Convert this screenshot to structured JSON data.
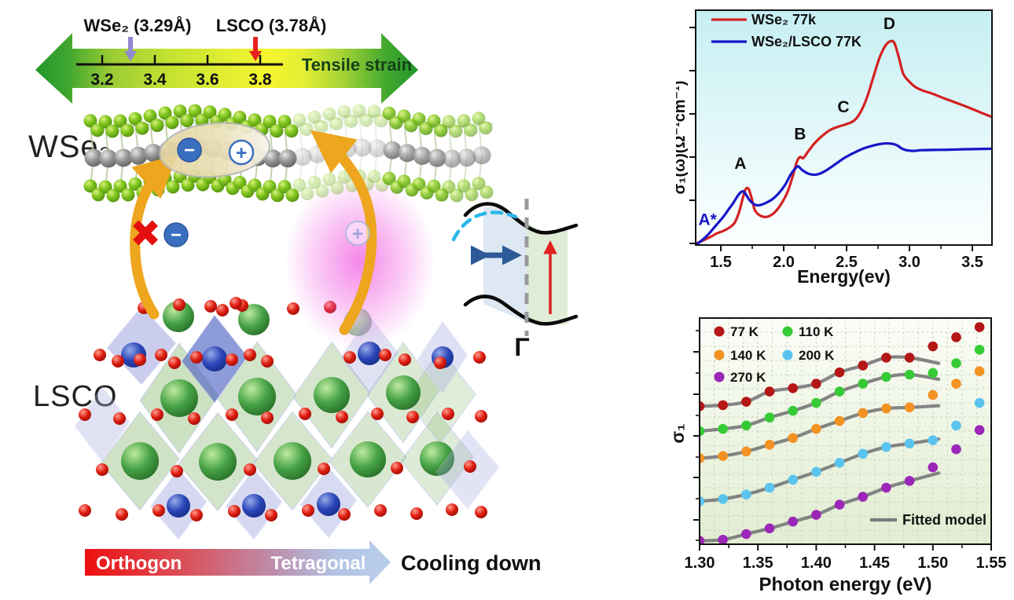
{
  "left_panel": {
    "strain_scale": {
      "wse2_annotation": "WSe₂ (3.29Å)",
      "lsco_annotation": "LSCO (3.78Å)",
      "tick_labels": [
        "3.2",
        "3.4",
        "3.6",
        "3.8"
      ],
      "title": "Tensile strain",
      "wse2_value": 3.29,
      "lsco_value": 3.78,
      "colors": {
        "arrow_green": "#23972b",
        "arrow_yellow": "#f6f62e",
        "wse2_pointer": "#9188d2",
        "lsco_pointer": "#e82222",
        "title_color": "#15421a"
      }
    },
    "wse2_label": "WSe₂",
    "lsco_label": "LSCO",
    "charges": {
      "electron_symbol": "−",
      "hole_symbol": "+"
    },
    "icons": {
      "blocked_cross": "✖"
    },
    "band_diagram": {
      "gamma_label": "Γ"
    },
    "cooling_arrow": {
      "left_label": "Orthogon",
      "right_label": "Tetragonal",
      "caption": "Cooling down",
      "colors": {
        "start": "#ee0f0f",
        "end": "#b9cdea"
      }
    }
  },
  "chart_data": [
    {
      "type": "line",
      "title": "",
      "xlabel": "Energy(ev)",
      "ylabel": "σ₁(ω)(Ω⁻¹cm⁻¹)",
      "xlim": [
        1.3,
        3.656
      ],
      "ylim": [
        0,
        1
      ],
      "y_units": "arbitrary (no tick labels shown)",
      "x_ticks": [
        1.5,
        2.0,
        2.5,
        3.0,
        3.5
      ],
      "x_tick_labels": [
        "1.5",
        "2.0",
        "2.5",
        "3.0",
        "3.5"
      ],
      "x_minor_ticks": [
        1.75,
        2.25,
        2.75,
        3.25
      ],
      "grid": false,
      "legend_position": "top-left",
      "background": {
        "top": "#c6eff3",
        "bottom": "#fdffff"
      },
      "series": [
        {
          "name": "WSe₂ 77k",
          "color": "#d42121",
          "x": [
            1.3,
            1.36,
            1.42,
            1.47,
            1.52,
            1.57,
            1.61,
            1.645,
            1.67,
            1.695,
            1.72,
            1.745,
            1.77,
            1.8,
            1.84,
            1.88,
            1.93,
            1.98,
            2.03,
            2.07,
            2.105,
            2.13,
            2.155,
            2.19,
            2.24,
            2.3,
            2.37,
            2.44,
            2.5,
            2.56,
            2.61,
            2.66,
            2.71,
            2.76,
            2.81,
            2.85,
            2.88,
            2.915,
            2.95,
            3.0,
            3.05,
            3.11,
            3.18,
            3.26,
            3.35,
            3.45,
            3.55,
            3.656
          ],
          "y": [
            0.005,
            0.02,
            0.035,
            0.05,
            0.06,
            0.075,
            0.095,
            0.14,
            0.19,
            0.235,
            0.24,
            0.2,
            0.15,
            0.13,
            0.12,
            0.122,
            0.14,
            0.175,
            0.225,
            0.29,
            0.355,
            0.375,
            0.37,
            0.395,
            0.43,
            0.462,
            0.49,
            0.505,
            0.515,
            0.53,
            0.565,
            0.625,
            0.71,
            0.795,
            0.85,
            0.868,
            0.86,
            0.8,
            0.73,
            0.695,
            0.672,
            0.657,
            0.645,
            0.628,
            0.61,
            0.59,
            0.568,
            0.545
          ]
        },
        {
          "name": "WSe₂/LSCO 77K",
          "color": "#1717c8",
          "x": [
            1.3,
            1.35,
            1.4,
            1.44,
            1.48,
            1.52,
            1.56,
            1.6,
            1.635,
            1.66,
            1.68,
            1.7,
            1.73,
            1.77,
            1.81,
            1.86,
            1.91,
            1.96,
            2.01,
            2.055,
            2.09,
            2.115,
            2.15,
            2.2,
            2.26,
            2.32,
            2.4,
            2.48,
            2.56,
            2.64,
            2.72,
            2.79,
            2.85,
            2.9,
            2.95,
            3.02,
            3.1,
            3.2,
            3.32,
            3.45,
            3.656
          ],
          "y": [
            0.0,
            0.02,
            0.045,
            0.07,
            0.095,
            0.12,
            0.15,
            0.18,
            0.21,
            0.225,
            0.228,
            0.215,
            0.19,
            0.172,
            0.17,
            0.18,
            0.195,
            0.22,
            0.255,
            0.3,
            0.325,
            0.335,
            0.318,
            0.303,
            0.3,
            0.312,
            0.34,
            0.37,
            0.393,
            0.412,
            0.425,
            0.432,
            0.432,
            0.425,
            0.408,
            0.401,
            0.404,
            0.405,
            0.406,
            0.408,
            0.41
          ]
        }
      ],
      "annotations": [
        {
          "text": "A*",
          "x": 1.395,
          "y": 0.085,
          "color": "#1717c8"
        },
        {
          "text": "A",
          "x": 1.655,
          "y": 0.325,
          "color": "#111111"
        },
        {
          "text": "B",
          "x": 2.13,
          "y": 0.45,
          "color": "#111111"
        },
        {
          "text": "C",
          "x": 2.475,
          "y": 0.565,
          "color": "#111111"
        },
        {
          "text": "D",
          "x": 2.84,
          "y": 0.92,
          "color": "#111111"
        }
      ]
    },
    {
      "type": "scatter",
      "title": "",
      "xlabel": "Photon energy (eV)",
      "ylabel": "σ₁",
      "xlim": [
        1.3,
        1.55
      ],
      "ylim": [
        0,
        1
      ],
      "y_units": "arbitrary (no tick labels shown)",
      "x_ticks": [
        1.3,
        1.35,
        1.4,
        1.45,
        1.5,
        1.55
      ],
      "x_tick_labels": [
        "1.30",
        "1.35",
        "1.40",
        "1.45",
        "1.50",
        "1.55"
      ],
      "grid": true,
      "background": {
        "top": "#fbfdf7",
        "bottom": "#e1edd1"
      },
      "grid_color": "#c9d0c1",
      "x": [
        1.3,
        1.32,
        1.34,
        1.36,
        1.38,
        1.4,
        1.42,
        1.44,
        1.46,
        1.48,
        1.5,
        1.52,
        1.54
      ],
      "series": [
        {
          "name": "77 K",
          "color": "#b51616",
          "values": [
            0.61,
            0.615,
            0.63,
            0.675,
            0.69,
            0.71,
            0.76,
            0.79,
            0.825,
            0.825,
            0.875,
            0.915,
            0.96
          ],
          "fit_end": 0.8
        },
        {
          "name": "140 K",
          "color": "#f29222",
          "values": [
            0.38,
            0.39,
            0.41,
            0.44,
            0.47,
            0.51,
            0.545,
            0.58,
            0.6,
            0.605,
            0.66,
            0.71,
            0.765
          ],
          "fit_end": 0.612
        },
        {
          "name": "270 K",
          "color": "#9b27b8",
          "values": [
            0.015,
            0.02,
            0.045,
            0.07,
            0.1,
            0.13,
            0.175,
            0.21,
            0.25,
            0.28,
            0.34,
            0.42,
            0.505
          ],
          "fit_end": 0.315
        },
        {
          "name": "110 K",
          "color": "#36cb36",
          "values": [
            0.5,
            0.51,
            0.525,
            0.56,
            0.59,
            0.625,
            0.675,
            0.71,
            0.74,
            0.75,
            0.757,
            0.8,
            0.86
          ],
          "fit_end": 0.73
        },
        {
          "name": "200 K",
          "color": "#5ac4ee",
          "values": [
            0.19,
            0.2,
            0.22,
            0.25,
            0.285,
            0.32,
            0.36,
            0.4,
            0.43,
            0.445,
            0.46,
            0.525,
            0.625
          ],
          "fit_end": 0.465
        }
      ],
      "legend_columns": [
        [
          "77 K",
          "140 K",
          "270 K"
        ],
        [
          "110 K",
          "200 K"
        ]
      ],
      "fit": {
        "label": "Fitted model",
        "color": "#7a7a7a",
        "x_end": 1.505,
        "points_used": 10
      }
    }
  ]
}
